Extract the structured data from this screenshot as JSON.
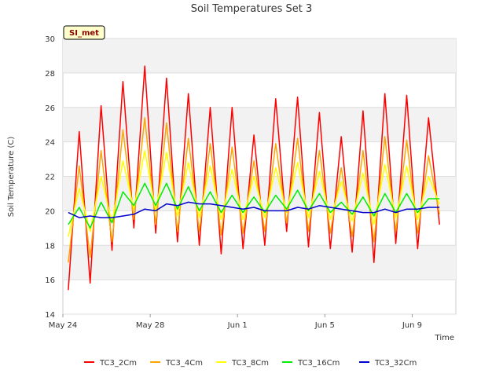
{
  "chart_data": {
    "type": "line",
    "title": "Soil Temperatures Set 3",
    "xlabel": "Time",
    "ylabel": "Soil Temperature (C)",
    "badge": "SI_met",
    "ylim": [
      14,
      30
    ],
    "yticks": [
      14,
      16,
      18,
      20,
      22,
      24,
      26,
      28,
      30
    ],
    "xlim": [
      "2024-05-24",
      "2024-06-11"
    ],
    "xticks": [
      {
        "date": "2024-05-24",
        "label": "May 24"
      },
      {
        "date": "2024-05-28",
        "label": "May 28"
      },
      {
        "date": "2024-06-01",
        "label": "Jun 1"
      },
      {
        "date": "2024-06-05",
        "label": "Jun 5"
      },
      {
        "date": "2024-06-09",
        "label": "Jun 9"
      }
    ],
    "grid": true,
    "legend": "bottom",
    "x": [
      "2024-05-24 06:00",
      "2024-05-24 18:00",
      "2024-05-25 06:00",
      "2024-05-25 18:00",
      "2024-05-26 06:00",
      "2024-05-26 18:00",
      "2024-05-27 06:00",
      "2024-05-27 18:00",
      "2024-05-28 06:00",
      "2024-05-28 18:00",
      "2024-05-29 06:00",
      "2024-05-29 18:00",
      "2024-05-30 06:00",
      "2024-05-30 18:00",
      "2024-05-31 06:00",
      "2024-05-31 18:00",
      "2024-06-01 06:00",
      "2024-06-01 18:00",
      "2024-06-02 06:00",
      "2024-06-02 18:00",
      "2024-06-03 06:00",
      "2024-06-03 18:00",
      "2024-06-04 06:00",
      "2024-06-04 18:00",
      "2024-06-05 06:00",
      "2024-06-05 18:00",
      "2024-06-06 06:00",
      "2024-06-06 18:00",
      "2024-06-07 06:00",
      "2024-06-07 18:00",
      "2024-06-08 06:00",
      "2024-06-08 18:00",
      "2024-06-09 06:00",
      "2024-06-09 18:00",
      "2024-06-10 06:00",
      "2024-06-10 18:00"
    ],
    "series": [
      {
        "name": "TC3_2Cm",
        "color": "#ff0000",
        "values": [
          15.4,
          24.6,
          15.8,
          26.1,
          17.7,
          27.5,
          19.0,
          28.4,
          18.7,
          27.7,
          18.2,
          26.8,
          18.0,
          26.0,
          17.5,
          26.0,
          17.8,
          24.4,
          18.0,
          26.5,
          18.8,
          26.6,
          17.9,
          25.7,
          17.8,
          24.3,
          17.6,
          25.8,
          17.0,
          26.8,
          18.1,
          26.7,
          17.8,
          25.4,
          19.2,
          null
        ]
      },
      {
        "name": "TC3_4Cm",
        "color": "#ffa500",
        "values": [
          17.0,
          22.6,
          17.3,
          23.5,
          18.2,
          24.7,
          19.5,
          25.4,
          19.2,
          25.1,
          18.8,
          24.2,
          18.8,
          23.9,
          18.6,
          23.7,
          18.7,
          22.9,
          18.8,
          23.9,
          19.3,
          24.2,
          18.8,
          23.5,
          18.7,
          22.5,
          18.5,
          23.5,
          18.2,
          24.3,
          18.8,
          24.1,
          18.7,
          23.2,
          19.8,
          null
        ]
      },
      {
        "name": "TC3_8Cm",
        "color": "#ffff00",
        "values": [
          18.5,
          21.3,
          18.8,
          22.0,
          19.3,
          22.9,
          20.1,
          23.5,
          20.0,
          23.4,
          19.7,
          22.8,
          19.6,
          22.6,
          19.5,
          22.4,
          19.5,
          22.0,
          19.6,
          22.5,
          19.9,
          22.8,
          19.6,
          22.3,
          19.5,
          21.7,
          19.4,
          22.2,
          19.2,
          22.7,
          19.6,
          22.6,
          19.5,
          22.0,
          20.4,
          null
        ]
      },
      {
        "name": "TC3_16Cm",
        "color": "#00ee00",
        "values": [
          19.2,
          20.2,
          19.0,
          20.5,
          19.3,
          21.1,
          20.3,
          21.6,
          20.3,
          21.6,
          20.1,
          21.4,
          20.0,
          21.1,
          19.9,
          20.9,
          19.9,
          20.8,
          19.9,
          20.9,
          20.1,
          21.2,
          20.0,
          21.0,
          19.9,
          20.5,
          19.8,
          20.8,
          19.7,
          21.0,
          19.9,
          21.0,
          19.9,
          20.7,
          20.7,
          null
        ]
      },
      {
        "name": "TC3_32Cm",
        "color": "#0000cc",
        "values": [
          19.9,
          19.6,
          19.7,
          19.6,
          19.6,
          19.7,
          19.8,
          20.1,
          20.0,
          20.4,
          20.3,
          20.5,
          20.4,
          20.4,
          20.3,
          20.2,
          20.1,
          20.2,
          20.0,
          20.0,
          20.0,
          20.2,
          20.1,
          20.3,
          20.2,
          20.1,
          20.0,
          19.9,
          19.9,
          20.1,
          19.9,
          20.1,
          20.1,
          20.2,
          20.2,
          null
        ]
      }
    ]
  }
}
